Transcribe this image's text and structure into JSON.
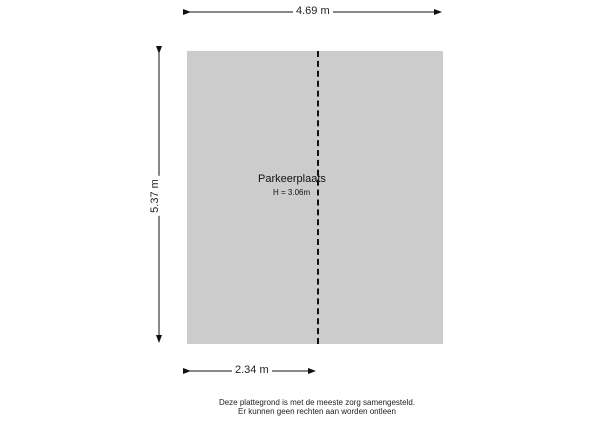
{
  "dimensions": {
    "top_width": "4.69 m",
    "left_height": "5.37 m",
    "bottom_width": "2.34 m"
  },
  "room": {
    "name": "Parkeerplaats",
    "height": "H = 3.06m",
    "fill_color": "#cccccc"
  },
  "disclaimer": {
    "line1": "Deze plattegrond is met de meeste zorg samengesteld.",
    "line2": "Er kunnen geen rechten aan worden ontleen"
  }
}
